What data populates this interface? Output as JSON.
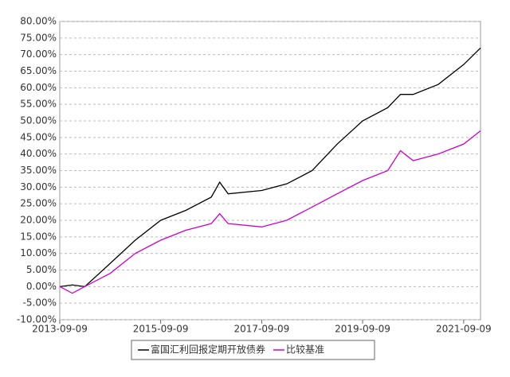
{
  "chart_data": {
    "type": "line",
    "x": [
      "2013-09-09",
      "2013-12-09",
      "2014-03-09",
      "2014-09-09",
      "2015-03-09",
      "2015-09-09",
      "2016-03-09",
      "2016-09-09",
      "2016-11-09",
      "2017-01-09",
      "2017-09-09",
      "2018-03-09",
      "2018-09-09",
      "2019-03-09",
      "2019-09-09",
      "2020-03-09",
      "2020-06-09",
      "2020-09-09",
      "2021-03-09",
      "2021-09-09",
      "2022-01-09"
    ],
    "series": [
      {
        "name": "富国汇利回报定期开放债券",
        "color": "#000000",
        "values": [
          0,
          0.5,
          0,
          7,
          14,
          20,
          23,
          27,
          31.5,
          28,
          29,
          31,
          35,
          43,
          50,
          54,
          58,
          58,
          61,
          67,
          72
        ]
      },
      {
        "name": "比较基准",
        "color": "#cc00cc",
        "values": [
          0,
          -2,
          0,
          4,
          10,
          14,
          17,
          19,
          22,
          19,
          18,
          20,
          24,
          28,
          32,
          35,
          41,
          38,
          40,
          43,
          47
        ]
      }
    ],
    "xlim": [
      "2013-09-09",
      "2022-01-09"
    ],
    "xticks": [
      "2013-09-09",
      "2015-09-09",
      "2017-09-09",
      "2019-09-09",
      "2021-09-09"
    ],
    "ylim": [
      -10,
      80
    ],
    "yticks": [
      {
        "value": -10,
        "label": "-10.00%"
      },
      {
        "value": -5,
        "label": "-5.00%"
      },
      {
        "value": 0,
        "label": "0.00%"
      },
      {
        "value": 5,
        "label": "5.00%"
      },
      {
        "value": 10,
        "label": "10.00%"
      },
      {
        "value": 15,
        "label": "15.00%"
      },
      {
        "value": 20,
        "label": "20.00%"
      },
      {
        "value": 25,
        "label": "25.00%"
      },
      {
        "value": 30,
        "label": "30.00%"
      },
      {
        "value": 35,
        "label": "35.00%"
      },
      {
        "value": 40,
        "label": "40.00%"
      },
      {
        "value": 45,
        "label": "45.00%"
      },
      {
        "value": 50,
        "label": "50.00%"
      },
      {
        "value": 55,
        "label": "55.00%"
      },
      {
        "value": 60,
        "label": "60.00%"
      },
      {
        "value": 65,
        "label": "65.00%"
      },
      {
        "value": 70,
        "label": "70.00%"
      },
      {
        "value": 75,
        "label": "75.00%"
      },
      {
        "value": 80,
        "label": "80.00%"
      }
    ],
    "grid": true,
    "legend": "bottom"
  }
}
